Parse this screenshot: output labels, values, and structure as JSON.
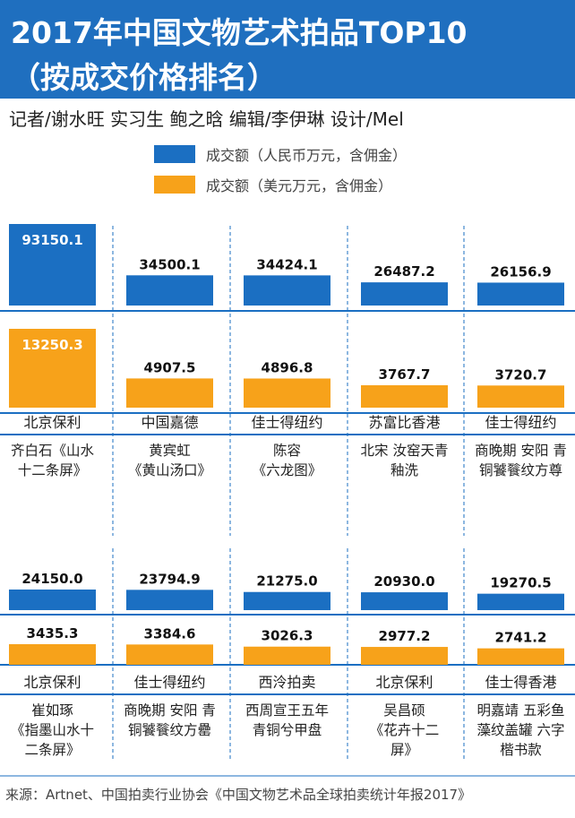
{
  "header": {
    "title_line1": "2017年中国文物艺术拍品TOP10",
    "title_line2": "（按成交价格排名）"
  },
  "byline": "记者/谢水旺  实习生  鲍之晗    编辑/李伊琳  设计/Mel",
  "source": "来源：Artnet、中国拍卖行业协会《中国文物艺术品全球拍卖统计年报2017》",
  "colors": {
    "rmb": "#1b6fc2",
    "usd": "#f7a21a",
    "header": "#1f6fbf"
  },
  "chart_data": {
    "type": "bar",
    "series": [
      {
        "name": "成交额（人民币万元，含佣金）",
        "color": "#1b6fc2",
        "values": [
          93150.1,
          34500.1,
          34424.1,
          26487.2,
          26156.9,
          24150.0,
          23794.9,
          21275.0,
          20930.0,
          19270.5
        ]
      },
      {
        "name": "成交额（美元万元，含佣金）",
        "color": "#f7a21a",
        "values": [
          13250.3,
          4907.5,
          4896.8,
          3767.7,
          3720.7,
          3435.3,
          3384.6,
          3026.3,
          2977.2,
          2741.2
        ]
      }
    ],
    "value_labels_rmb": [
      "93150.1",
      "34500.1",
      "34424.1",
      "26487.2",
      "26156.9",
      "24150.0",
      "23794.9",
      "21275.0",
      "20930.0",
      "19270.5"
    ],
    "value_labels_usd": [
      "13250.3",
      "4907.5",
      "4896.8",
      "3767.7",
      "3720.7",
      "3435.3",
      "3384.6",
      "3026.3",
      "2977.2",
      "2741.2"
    ],
    "auction_houses": [
      "北京保利",
      "中国嘉德",
      "佳士得纽约",
      "苏富比香港",
      "佳士得纽约",
      "北京保利",
      "佳士得纽约",
      "西泠拍卖",
      "北京保利",
      "佳士得香港"
    ],
    "artworks": [
      [
        "齐白石《山水",
        "十二条屏》"
      ],
      [
        "黄宾虹",
        "《黄山汤口》"
      ],
      [
        "陈容",
        "《六龙图》"
      ],
      [
        "北宋 汝窑天青",
        "釉洗"
      ],
      [
        "商晚期 安阳 青",
        "铜饕餮纹方尊"
      ],
      [
        "崔如琢",
        "《指墨山水十",
        "二条屏》"
      ],
      [
        "商晚期 安阳 青",
        "铜饕餮纹方罍"
      ],
      [
        "西周宣王五年",
        "青铜兮甲盘"
      ],
      [
        "吴昌硕",
        "《花卉十二",
        "屏》"
      ],
      [
        "明嘉靖 五彩鱼",
        "藻纹盖罐 六字",
        "楷书款"
      ]
    ]
  }
}
